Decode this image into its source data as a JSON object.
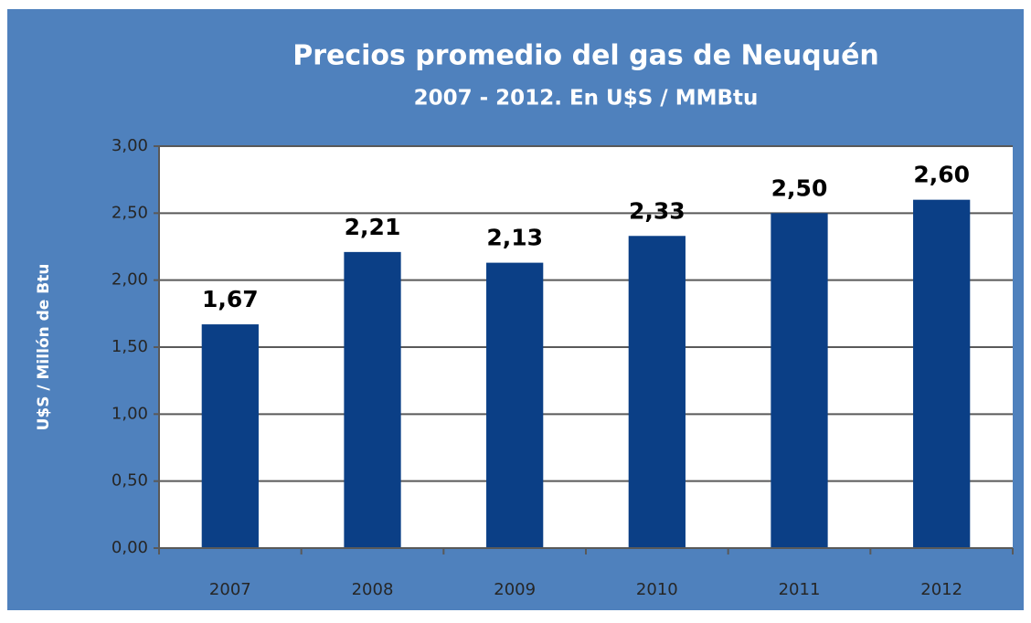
{
  "chart_data": {
    "type": "bar",
    "title": "Precios promedio del gas de Neuquén",
    "subtitle": "2007 - 2012. En U$S / MMBtu",
    "y_label": "U$S / Millón de Btu",
    "categories": [
      "2007",
      "2008",
      "2009",
      "2010",
      "2011",
      "2012"
    ],
    "values": [
      1.67,
      2.21,
      2.13,
      2.33,
      2.5,
      2.6
    ],
    "value_labels": [
      "1,67",
      "2,21",
      "2,13",
      "2,33",
      "2,50",
      "2,60"
    ],
    "color": "#0b3f86",
    "ylim": [
      0,
      3
    ],
    "yticks": [
      {
        "value": 0,
        "label": "0,00"
      },
      {
        "value": 0.5,
        "label": "0,50"
      },
      {
        "value": 1,
        "label": "1,00"
      },
      {
        "value": 1.5,
        "label": "1,50"
      },
      {
        "value": 2,
        "label": "2,00"
      },
      {
        "value": 2.5,
        "label": "2,50"
      },
      {
        "value": 3,
        "label": "3,00"
      }
    ],
    "grid": true
  }
}
